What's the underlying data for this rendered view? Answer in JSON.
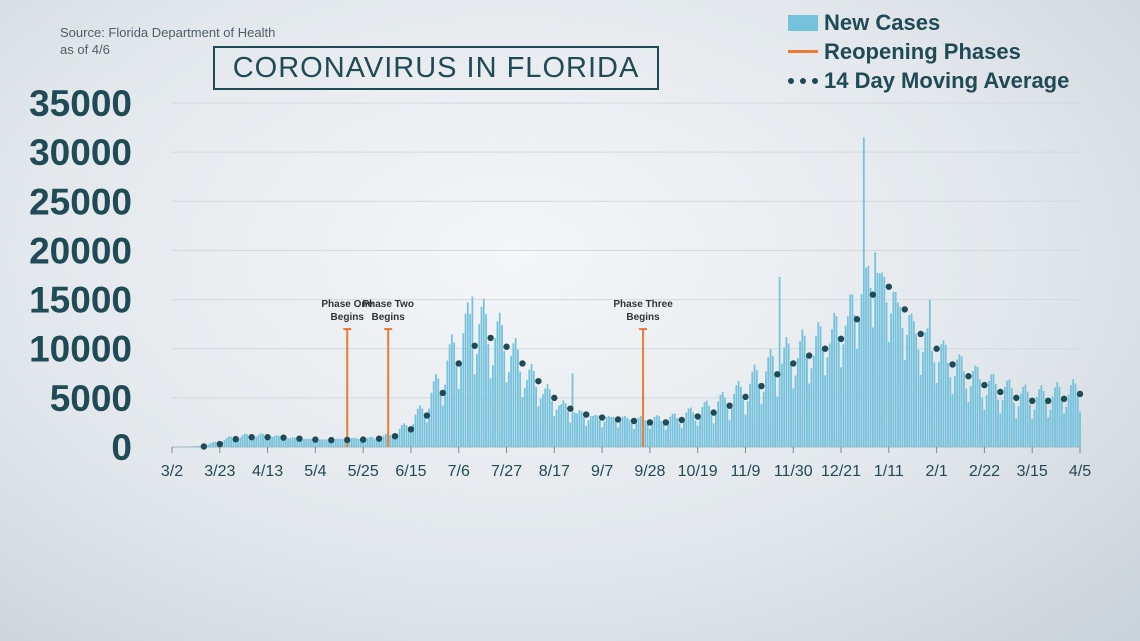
{
  "source_lines": [
    "Source: Florida Department of Health",
    "as of 4/6"
  ],
  "title": "CORONAVIRUS IN FLORIDA",
  "legend": [
    {
      "label": "New Cases",
      "kind": "bar"
    },
    {
      "label": "Reopening Phases",
      "kind": "line"
    },
    {
      "label": "14 Day Moving Average",
      "kind": "dots"
    }
  ],
  "colors": {
    "bars": "#74c2dc",
    "phases": "#ec7a33",
    "average": "#1f4a56",
    "grid": "#d2d9de",
    "text": "#1f4a56"
  },
  "chart_data": {
    "type": "bar",
    "title": "CORONAVIRUS IN FLORIDA",
    "ylim": [
      0,
      35000
    ],
    "yticks": [
      0,
      5000,
      10000,
      15000,
      20000,
      25000,
      30000,
      35000
    ],
    "x_start": "2020-03-02",
    "x_end": "2021-04-05",
    "xticks": [
      "3/2",
      "3/23",
      "4/13",
      "5/4",
      "5/25",
      "6/15",
      "7/6",
      "7/27",
      "8/17",
      "9/7",
      "9/28",
      "10/19",
      "11/9",
      "11/30",
      "12/21",
      "1/11",
      "2/1",
      "2/22",
      "3/15",
      "4/5"
    ],
    "grid": true,
    "series": [
      {
        "name": "New Cases",
        "type": "bar",
        "points": [
          [
            "2020-03-02",
            0
          ],
          [
            "2020-03-16",
            100
          ],
          [
            "2020-03-23",
            600
          ],
          [
            "2020-03-30",
            1000
          ],
          [
            "2020-04-06",
            1100
          ],
          [
            "2020-04-13",
            1100
          ],
          [
            "2020-04-20",
            900
          ],
          [
            "2020-04-27",
            800
          ],
          [
            "2020-05-04",
            700
          ],
          [
            "2020-05-11",
            700
          ],
          [
            "2020-05-18",
            800
          ],
          [
            "2020-05-25",
            800
          ],
          [
            "2020-06-01",
            900
          ],
          [
            "2020-06-08",
            1300
          ],
          [
            "2020-06-15",
            2400
          ],
          [
            "2020-06-22",
            4000
          ],
          [
            "2020-06-29",
            7000
          ],
          [
            "2020-07-06",
            10000
          ],
          [
            "2020-07-13",
            12000
          ],
          [
            "2020-07-20",
            11000
          ],
          [
            "2020-07-27",
            10000
          ],
          [
            "2020-08-03",
            7500
          ],
          [
            "2020-08-10",
            6000
          ],
          [
            "2020-08-17",
            4500
          ],
          [
            "2020-08-24",
            3500
          ],
          [
            "2020-08-31",
            3000
          ],
          [
            "2020-09-07",
            2800
          ],
          [
            "2020-09-14",
            2800
          ],
          [
            "2020-09-21",
            2600
          ],
          [
            "2020-09-28",
            2700
          ],
          [
            "2020-10-05",
            2600
          ],
          [
            "2020-10-12",
            2900
          ],
          [
            "2020-10-19",
            3400
          ],
          [
            "2020-10-26",
            3900
          ],
          [
            "2020-11-02",
            4600
          ],
          [
            "2020-11-09",
            5500
          ],
          [
            "2020-11-16",
            7000
          ],
          [
            "2020-11-23",
            8000
          ],
          [
            "2020-11-30",
            9000
          ],
          [
            "2020-12-07",
            9500
          ],
          [
            "2020-12-14",
            10500
          ],
          [
            "2020-12-21",
            11500
          ],
          [
            "2020-12-28",
            14000
          ],
          [
            "2021-01-04",
            17000
          ],
          [
            "2021-01-11",
            15000
          ],
          [
            "2021-01-18",
            12500
          ],
          [
            "2021-01-25",
            10500
          ],
          [
            "2021-02-01",
            9500
          ],
          [
            "2021-02-08",
            8000
          ],
          [
            "2021-02-15",
            7000
          ],
          [
            "2021-02-22",
            6000
          ],
          [
            "2021-03-01",
            5600
          ],
          [
            "2021-03-08",
            5000
          ],
          [
            "2021-03-15",
            4700
          ],
          [
            "2021-03-22",
            4800
          ],
          [
            "2021-03-29",
            5200
          ],
          [
            "2021-04-05",
            5400
          ]
        ],
        "spikes": [
          [
            "2020-07-12",
            15300
          ],
          [
            "2020-08-25",
            7500
          ],
          [
            "2020-11-24",
            17300
          ],
          [
            "2020-12-31",
            31500
          ],
          [
            "2021-01-05",
            19800
          ],
          [
            "2021-01-29",
            15000
          ]
        ]
      },
      {
        "name": "14 Day Moving Average",
        "type": "line",
        "points": [
          [
            "2020-03-16",
            50
          ],
          [
            "2020-03-23",
            300
          ],
          [
            "2020-03-30",
            800
          ],
          [
            "2020-04-06",
            1000
          ],
          [
            "2020-04-13",
            1000
          ],
          [
            "2020-04-20",
            950
          ],
          [
            "2020-04-27",
            850
          ],
          [
            "2020-05-04",
            750
          ],
          [
            "2020-05-11",
            700
          ],
          [
            "2020-05-18",
            720
          ],
          [
            "2020-05-25",
            750
          ],
          [
            "2020-06-01",
            850
          ],
          [
            "2020-06-08",
            1100
          ],
          [
            "2020-06-15",
            1800
          ],
          [
            "2020-06-22",
            3200
          ],
          [
            "2020-06-29",
            5500
          ],
          [
            "2020-07-06",
            8500
          ],
          [
            "2020-07-13",
            10300
          ],
          [
            "2020-07-20",
            11100
          ],
          [
            "2020-07-27",
            10200
          ],
          [
            "2020-08-03",
            8500
          ],
          [
            "2020-08-10",
            6700
          ],
          [
            "2020-08-17",
            5000
          ],
          [
            "2020-08-24",
            3900
          ],
          [
            "2020-08-31",
            3300
          ],
          [
            "2020-09-07",
            3000
          ],
          [
            "2020-09-14",
            2800
          ],
          [
            "2020-09-21",
            2650
          ],
          [
            "2020-09-28",
            2500
          ],
          [
            "2020-10-05",
            2500
          ],
          [
            "2020-10-12",
            2750
          ],
          [
            "2020-10-19",
            3100
          ],
          [
            "2020-10-26",
            3500
          ],
          [
            "2020-11-02",
            4200
          ],
          [
            "2020-11-09",
            5100
          ],
          [
            "2020-11-16",
            6200
          ],
          [
            "2020-11-23",
            7400
          ],
          [
            "2020-11-30",
            8500
          ],
          [
            "2020-12-07",
            9300
          ],
          [
            "2020-12-14",
            10000
          ],
          [
            "2020-12-21",
            11000
          ],
          [
            "2020-12-28",
            13000
          ],
          [
            "2021-01-04",
            15500
          ],
          [
            "2021-01-11",
            16300
          ],
          [
            "2021-01-18",
            14000
          ],
          [
            "2021-01-25",
            11500
          ],
          [
            "2021-02-01",
            10000
          ],
          [
            "2021-02-08",
            8400
          ],
          [
            "2021-02-15",
            7200
          ],
          [
            "2021-02-22",
            6300
          ],
          [
            "2021-03-01",
            5600
          ],
          [
            "2021-03-08",
            5000
          ],
          [
            "2021-03-15",
            4700
          ],
          [
            "2021-03-22",
            4700
          ],
          [
            "2021-03-29",
            4900
          ],
          [
            "2021-04-05",
            5400
          ]
        ]
      },
      {
        "name": "Reopening Phases",
        "type": "events",
        "events": [
          {
            "date": "2020-05-18",
            "value": 12000,
            "label_lines": [
              "Phase One",
              "Begins"
            ]
          },
          {
            "date": "2020-06-05",
            "value": 12000,
            "label_lines": [
              "Phase Two",
              "Begins"
            ]
          },
          {
            "date": "2020-09-25",
            "value": 12000,
            "label_lines": [
              "Phase Three",
              "Begins"
            ]
          }
        ]
      }
    ]
  }
}
